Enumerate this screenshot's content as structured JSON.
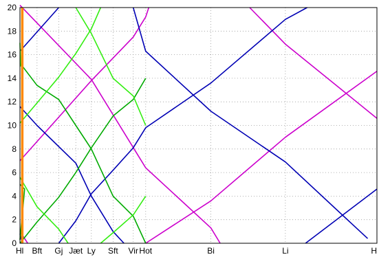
{
  "chart_data": {
    "type": "line",
    "title": "",
    "xlabel": "",
    "ylabel": "",
    "x_categories": [
      "Hl",
      "Bft",
      "Gj",
      "Jæt",
      "Ly",
      "Sft",
      "Vir",
      "Hot",
      "Bi",
      "Li",
      "H"
    ],
    "x_positions": [
      0,
      1.1,
      2.5,
      3.6,
      4.6,
      6.0,
      7.3,
      8.1,
      12.3,
      17.1,
      23.0
    ],
    "ylim": [
      0,
      20
    ],
    "yticks": [
      0,
      2,
      4,
      6,
      8,
      10,
      12,
      14,
      16,
      18,
      20
    ],
    "grid": true,
    "grid_style": "dotted",
    "colors": {
      "magenta": "#cc00cc",
      "blue": "#0000b4",
      "green": "#00aa00",
      "lightgreen": "#33ee11",
      "orange": "#ff8800"
    },
    "series": [
      {
        "color": "magenta",
        "points": [
          [
            0,
            20.2
          ],
          [
            4.6,
            13.9
          ],
          [
            8.1,
            6.4
          ],
          [
            12.3,
            1.3
          ],
          [
            12.9,
            0
          ]
        ]
      },
      {
        "color": "magenta",
        "points": [
          [
            4.6,
            13.8
          ],
          [
            7.3,
            17.5
          ],
          [
            8.1,
            19.2
          ],
          [
            8.3,
            20
          ]
        ]
      },
      {
        "color": "magenta",
        "points": [
          [
            0,
            7.0
          ],
          [
            4.6,
            13.8
          ]
        ]
      },
      {
        "color": "magenta",
        "points": [
          [
            8.1,
            0
          ],
          [
            12.3,
            3.6
          ],
          [
            17.1,
            9.0
          ],
          [
            23,
            14.6
          ]
        ]
      },
      {
        "color": "magenta",
        "points": [
          [
            14.8,
            20
          ],
          [
            17.1,
            16.9
          ],
          [
            23,
            10.6
          ]
        ]
      },
      {
        "color": "magenta",
        "points": [
          [
            0,
            1.0
          ],
          [
            0.5,
            0
          ]
        ]
      },
      {
        "color": "blue",
        "points": [
          [
            0,
            16.3
          ],
          [
            2.5,
            20
          ]
        ]
      },
      {
        "color": "blue",
        "points": [
          [
            0,
            11.6
          ],
          [
            1.1,
            10.0
          ],
          [
            3.6,
            6.8
          ],
          [
            4.6,
            4.0
          ],
          [
            6.0,
            1.0
          ],
          [
            6.7,
            0
          ]
        ]
      },
      {
        "color": "blue",
        "points": [
          [
            2.5,
            0
          ],
          [
            3.6,
            1.9
          ],
          [
            4.6,
            4.2
          ],
          [
            6.0,
            6.2
          ],
          [
            7.3,
            8.1
          ],
          [
            8.1,
            9.8
          ],
          [
            12.3,
            13.6
          ],
          [
            17.1,
            19.0
          ],
          [
            18.5,
            20
          ]
        ]
      },
      {
        "color": "blue",
        "points": [
          [
            7.3,
            20
          ],
          [
            8.1,
            16.3
          ],
          [
            12.3,
            11.2
          ],
          [
            17.1,
            6.9
          ],
          [
            22.4,
            0.4
          ]
        ]
      },
      {
        "color": "blue",
        "points": [
          [
            18.4,
            0
          ],
          [
            23,
            4.6
          ]
        ]
      },
      {
        "color": "blue",
        "points": [
          [
            0,
            0.8
          ],
          [
            0.15,
            0
          ]
        ]
      },
      {
        "color": "green",
        "points": [
          [
            0,
            15.3
          ],
          [
            1.1,
            13.4
          ],
          [
            2.5,
            12.2
          ],
          [
            3.6,
            10.0
          ],
          [
            4.6,
            8.0
          ],
          [
            6.0,
            4.0
          ],
          [
            7.3,
            2.3
          ],
          [
            8.1,
            0
          ]
        ]
      },
      {
        "color": "green",
        "points": [
          [
            0,
            0
          ],
          [
            1.1,
            1.8
          ],
          [
            2.5,
            3.9
          ],
          [
            3.6,
            6.0
          ],
          [
            4.6,
            8.1
          ],
          [
            6.0,
            10.8
          ],
          [
            7.3,
            12.2
          ],
          [
            8.1,
            14.0
          ]
        ]
      },
      {
        "color": "green",
        "points": [
          [
            0,
            5.0
          ],
          [
            0.3,
            4.6
          ],
          [
            0,
            0.3
          ]
        ]
      },
      {
        "color": "lightgreen",
        "points": [
          [
            0,
            5.6
          ],
          [
            1.1,
            3.1
          ],
          [
            2.5,
            1.2
          ],
          [
            3.1,
            0
          ]
        ]
      },
      {
        "color": "lightgreen",
        "points": [
          [
            0,
            10.2
          ],
          [
            1.1,
            11.9
          ],
          [
            2.5,
            14.1
          ],
          [
            3.6,
            16.1
          ],
          [
            4.6,
            18.2
          ],
          [
            5.2,
            20
          ]
        ]
      },
      {
        "color": "lightgreen",
        "points": [
          [
            3.6,
            20
          ],
          [
            4.6,
            17.8
          ],
          [
            6.0,
            14.0
          ],
          [
            7.3,
            12.5
          ],
          [
            8.1,
            10.0
          ]
        ]
      },
      {
        "color": "lightgreen",
        "points": [
          [
            5.2,
            0
          ],
          [
            6.0,
            0.9
          ],
          [
            7.3,
            2.4
          ],
          [
            8.1,
            4.0
          ]
        ]
      },
      {
        "color": "lightgreen",
        "points": [
          [
            0,
            17.0
          ],
          [
            0.05,
            15.0
          ]
        ]
      },
      {
        "color": "orange",
        "width": 3.5,
        "points": [
          [
            0.15,
            0
          ],
          [
            0.15,
            20
          ]
        ]
      }
    ]
  }
}
